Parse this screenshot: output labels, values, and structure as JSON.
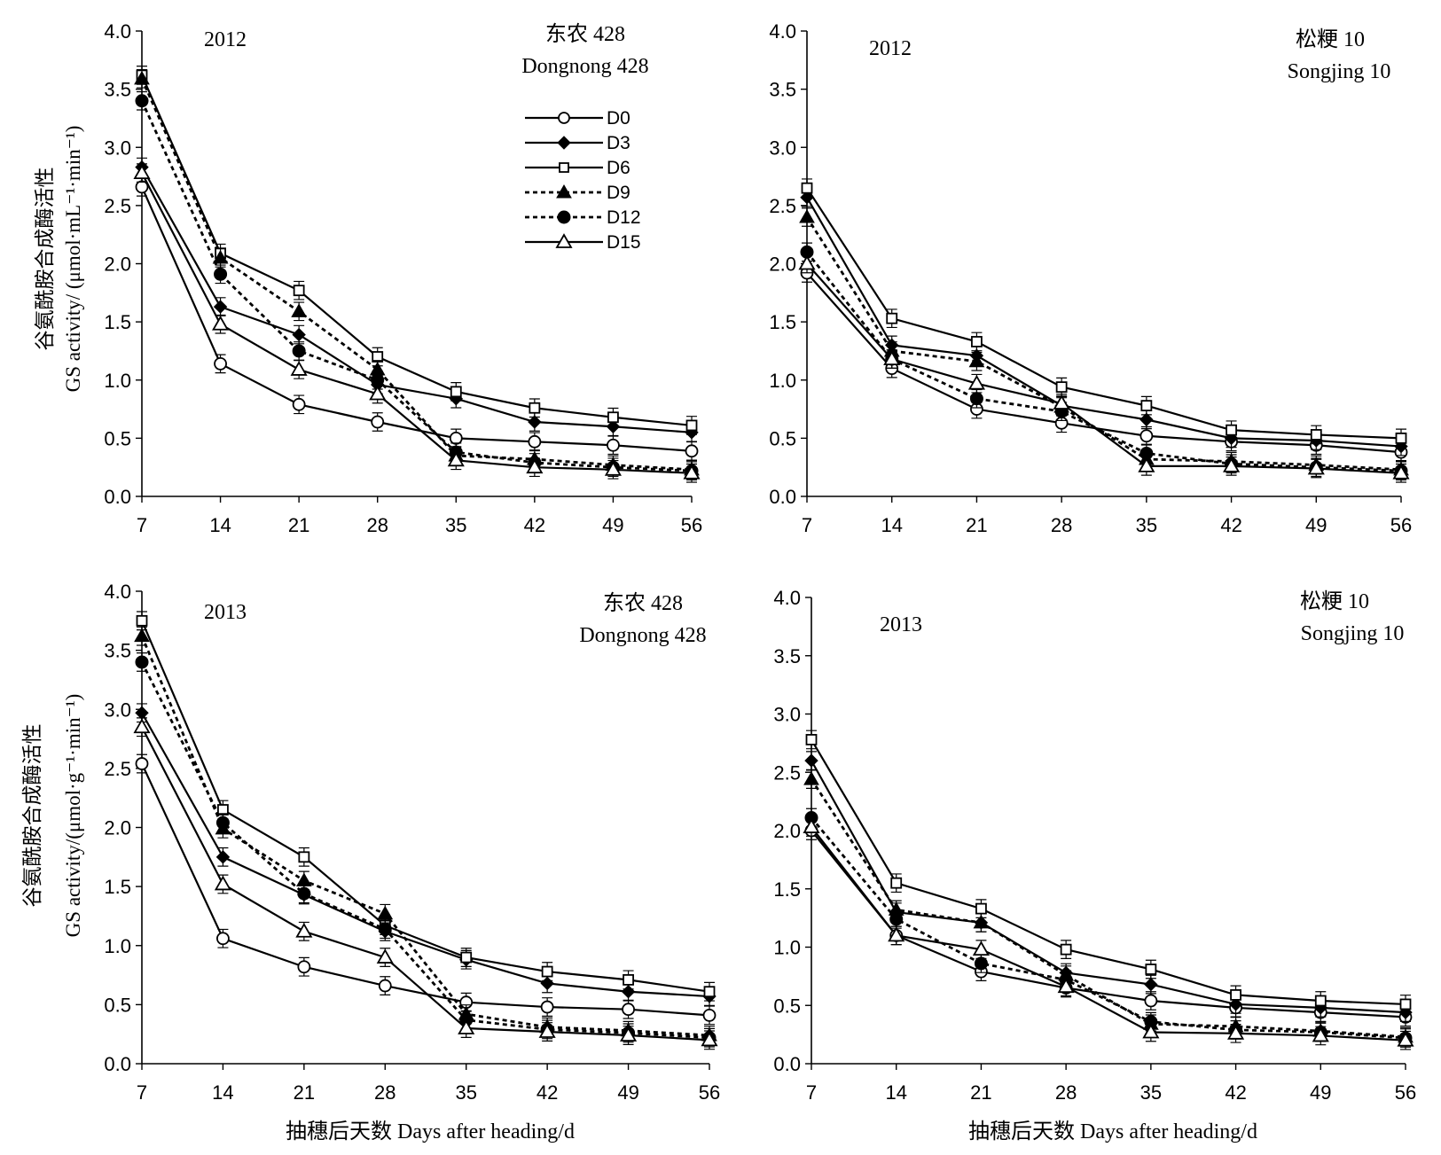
{
  "chart_data": [
    {
      "type": "line",
      "year": "2012",
      "variety_cn": "东农 428",
      "variety_en": "Dongnong 428",
      "ylabel_cn": "谷氨酰胺合成酶活性",
      "ylabel_en": "GS activity/ (μmol·mL⁻¹·min⁻¹)",
      "xlabel": "",
      "x": [
        7,
        14,
        21,
        28,
        35,
        42,
        49,
        56
      ],
      "ylim": [
        0,
        4.0
      ],
      "yticks": [
        "0.0",
        "0.5",
        "1.0",
        "1.5",
        "2.0",
        "2.5",
        "3.0",
        "3.5",
        "4.0"
      ],
      "legend": "top-center",
      "series": [
        {
          "name": "D0",
          "values": [
            2.66,
            1.14,
            0.79,
            0.64,
            0.5,
            0.47,
            0.44,
            0.39
          ]
        },
        {
          "name": "D3",
          "values": [
            2.83,
            1.63,
            1.39,
            0.96,
            0.84,
            0.64,
            0.6,
            0.55
          ]
        },
        {
          "name": "D6",
          "values": [
            3.62,
            2.09,
            1.77,
            1.2,
            0.9,
            0.76,
            0.68,
            0.61
          ]
        },
        {
          "name": "D9",
          "values": [
            3.59,
            2.05,
            1.59,
            1.09,
            0.35,
            0.32,
            0.27,
            0.23
          ]
        },
        {
          "name": "D12",
          "values": [
            3.4,
            1.91,
            1.25,
            1.0,
            0.38,
            0.29,
            0.25,
            0.22
          ]
        },
        {
          "name": "D15",
          "values": [
            2.78,
            1.48,
            1.09,
            0.88,
            0.31,
            0.25,
            0.23,
            0.2
          ]
        }
      ]
    },
    {
      "type": "line",
      "year": "2012",
      "variety_cn": "松粳 10",
      "variety_en": "Songjing 10",
      "xlabel": "",
      "x": [
        7,
        14,
        21,
        28,
        35,
        42,
        49,
        56
      ],
      "ylim": [
        0,
        4.0
      ],
      "yticks": [
        "0.0",
        "0.5",
        "1.0",
        "1.5",
        "2.0",
        "2.5",
        "3.0",
        "3.5",
        "4.0"
      ],
      "series": [
        {
          "name": "D0",
          "values": [
            1.92,
            1.1,
            0.75,
            0.63,
            0.52,
            0.47,
            0.44,
            0.38
          ]
        },
        {
          "name": "D3",
          "values": [
            2.57,
            1.3,
            1.21,
            0.78,
            0.66,
            0.5,
            0.48,
            0.43
          ]
        },
        {
          "name": "D6",
          "values": [
            2.65,
            1.53,
            1.33,
            0.94,
            0.78,
            0.57,
            0.53,
            0.5
          ]
        },
        {
          "name": "D9",
          "values": [
            2.4,
            1.25,
            1.16,
            0.77,
            0.32,
            0.3,
            0.27,
            0.23
          ]
        },
        {
          "name": "D12",
          "values": [
            2.1,
            1.18,
            0.84,
            0.73,
            0.37,
            0.28,
            0.25,
            0.22
          ]
        },
        {
          "name": "D15",
          "values": [
            2.0,
            1.18,
            0.97,
            0.8,
            0.26,
            0.26,
            0.24,
            0.2
          ]
        }
      ]
    },
    {
      "type": "line",
      "year": "2013",
      "variety_cn": "东农 428",
      "variety_en": "Dongnong 428",
      "ylabel_cn": "谷氨酰胺合成酶活性",
      "ylabel_en": "GS activity/(μmol·g⁻¹·min⁻¹)",
      "xlabel": "抽穗后天数 Days after heading/d",
      "x": [
        7,
        14,
        21,
        28,
        35,
        42,
        49,
        56
      ],
      "ylim": [
        0,
        4.0
      ],
      "yticks": [
        "0.0",
        "0.5",
        "1.0",
        "1.5",
        "2.0",
        "2.5",
        "3.0",
        "3.5",
        "4.0"
      ],
      "series": [
        {
          "name": "D0",
          "values": [
            2.54,
            1.06,
            0.82,
            0.66,
            0.52,
            0.48,
            0.46,
            0.41
          ]
        },
        {
          "name": "D3",
          "values": [
            2.97,
            1.75,
            1.43,
            1.12,
            0.88,
            0.68,
            0.61,
            0.57
          ]
        },
        {
          "name": "D6",
          "values": [
            3.75,
            2.15,
            1.75,
            1.17,
            0.9,
            0.78,
            0.71,
            0.61
          ]
        },
        {
          "name": "D9",
          "values": [
            3.62,
            1.99,
            1.55,
            1.27,
            0.42,
            0.31,
            0.28,
            0.24
          ]
        },
        {
          "name": "D12",
          "values": [
            3.4,
            2.04,
            1.44,
            1.14,
            0.37,
            0.29,
            0.26,
            0.22
          ]
        },
        {
          "name": "D15",
          "values": [
            2.85,
            1.52,
            1.12,
            0.9,
            0.3,
            0.27,
            0.24,
            0.2
          ]
        }
      ]
    },
    {
      "type": "line",
      "year": "2013",
      "variety_cn": "松粳 10",
      "variety_en": "Songjing 10",
      "xlabel": "抽穗后天数 Days after heading/d",
      "x": [
        7,
        14,
        21,
        28,
        35,
        42,
        49,
        56
      ],
      "ylim": [
        0,
        4.0
      ],
      "yticks": [
        "0.0",
        "0.5",
        "1.0",
        "1.5",
        "2.0",
        "2.5",
        "3.0",
        "3.5",
        "4.0"
      ],
      "series": [
        {
          "name": "D0",
          "values": [
            2.0,
            1.1,
            0.79,
            0.65,
            0.54,
            0.48,
            0.44,
            0.4
          ]
        },
        {
          "name": "D3",
          "values": [
            2.6,
            1.3,
            1.21,
            0.78,
            0.68,
            0.51,
            0.48,
            0.44
          ]
        },
        {
          "name": "D6",
          "values": [
            2.78,
            1.55,
            1.33,
            0.98,
            0.81,
            0.59,
            0.54,
            0.51
          ]
        },
        {
          "name": "D9",
          "values": [
            2.44,
            1.32,
            1.21,
            0.76,
            0.34,
            0.32,
            0.28,
            0.23
          ]
        },
        {
          "name": "D12",
          "values": [
            2.11,
            1.24,
            0.86,
            0.72,
            0.36,
            0.29,
            0.27,
            0.22
          ]
        },
        {
          "name": "D15",
          "values": [
            2.03,
            1.1,
            0.98,
            0.66,
            0.27,
            0.26,
            0.24,
            0.2
          ]
        }
      ]
    }
  ],
  "series_styles": {
    "D0": {
      "marker": "circle",
      "fill": "#ffffff",
      "dashed": false
    },
    "D3": {
      "marker": "diamond",
      "fill": "#000000",
      "dashed": false
    },
    "D6": {
      "marker": "square",
      "fill": "#ffffff",
      "dashed": false
    },
    "D9": {
      "marker": "triangle",
      "fill": "#000000",
      "dashed": true
    },
    "D12": {
      "marker": "circle",
      "fill": "#000000",
      "dashed": true
    },
    "D15": {
      "marker": "triangle",
      "fill": "#ffffff",
      "dashed": false
    }
  },
  "colors": {
    "line": "#000000",
    "background": "#ffffff"
  }
}
